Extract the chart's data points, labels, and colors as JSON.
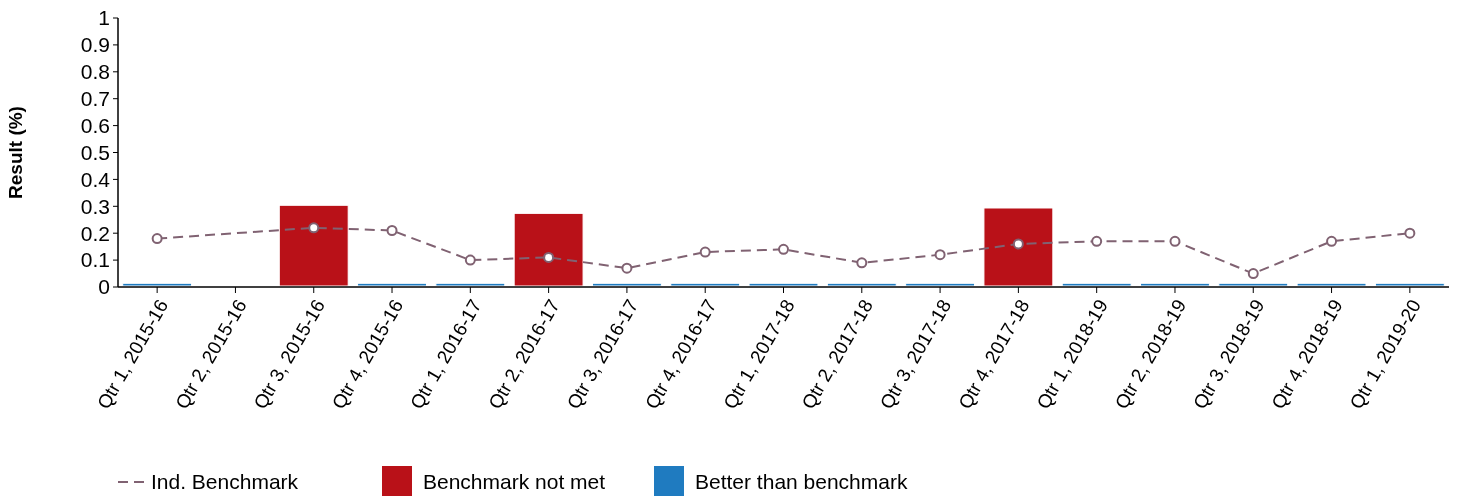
{
  "chart_data": {
    "type": "bar",
    "ylabel": "Result (%)",
    "legend": "bottom",
    "grid": false,
    "categories": [
      "Qtr 1, 2015-16",
      "Qtr 2, 2015-16",
      "Qtr 3, 2015-16",
      "Qtr 4, 2015-16",
      "Qtr 1, 2016-17",
      "Qtr 2, 2016-17",
      "Qtr 3, 2016-17",
      "Qtr 4, 2016-17",
      "Qtr 1, 2017-18",
      "Qtr 2, 2017-18",
      "Qtr 3, 2017-18",
      "Qtr 4, 2017-18",
      "Qtr 1, 2018-19",
      "Qtr 2, 2018-19",
      "Qtr 3, 2018-19",
      "Qtr 4, 2018-19",
      "Qtr 1, 2019-20"
    ],
    "ylim": [
      0,
      1
    ],
    "yticks": [
      0,
      0.1,
      0.2,
      0.3,
      0.4,
      0.5,
      0.6,
      0.7,
      0.8,
      0.9,
      1
    ],
    "series": [
      {
        "name": "Ind. Benchmark",
        "type": "line",
        "color": "#806272",
        "marker": "circle",
        "line_style": "dashed",
        "values": [
          0.18,
          null,
          0.22,
          0.21,
          0.1,
          0.11,
          0.07,
          0.13,
          0.14,
          0.09,
          0.12,
          0.16,
          0.17,
          0.17,
          0.05,
          0.17,
          0.2
        ]
      },
      {
        "name": "Benchmark not met",
        "color": "#b91118",
        "values": [
          null,
          null,
          0.3,
          null,
          null,
          0.27,
          null,
          null,
          null,
          null,
          null,
          0.29,
          null,
          null,
          null,
          null,
          null
        ]
      },
      {
        "name": "Better than benchmark",
        "color": "#1f7bc0",
        "values": [
          0.01,
          null,
          null,
          0.01,
          0.01,
          null,
          0.01,
          0.01,
          0.01,
          0.01,
          0.01,
          null,
          0.01,
          0.01,
          0.01,
          0.01,
          0.01
        ]
      }
    ]
  }
}
